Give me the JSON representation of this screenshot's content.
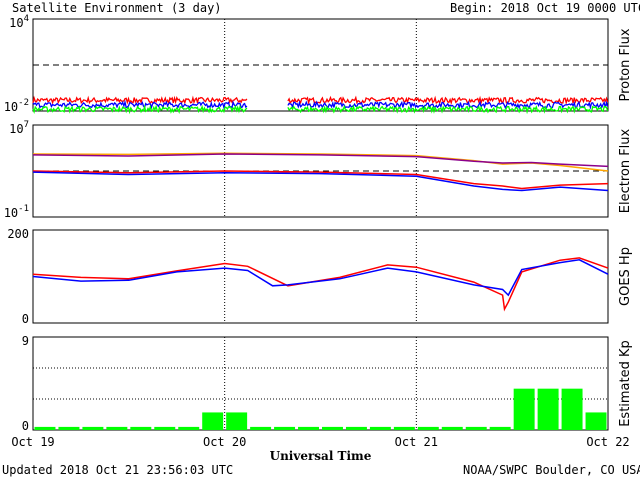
{
  "header": {
    "title": "Satellite Environment (3 day)",
    "begin": "Begin:  2018 Oct 19 0000 UTC"
  },
  "footer": {
    "updated": "Updated 2018 Oct 21 23:56:03 UTC",
    "credit": "NOAA/SWPC Boulder, CO USA"
  },
  "colors": {
    "red": "#ff0000",
    "blue": "#0000ff",
    "green": "#00ff00",
    "orange": "#ffa500",
    "purple": "#8b008b"
  },
  "chart_data": [
    {
      "type": "line",
      "ylabel": "Proton Flux",
      "yscale": "log",
      "ylim": [
        0.01,
        10000
      ],
      "ytick_labels": [
        "10^4",
        "10^-2"
      ],
      "threshold": 10,
      "x_units": "days since 2018 Oct 19 0000 UTC",
      "data_gap": [
        1.12,
        1.33
      ],
      "series": [
        {
          "color": "red",
          "typical": 0.05
        },
        {
          "color": "blue",
          "typical": 0.025
        },
        {
          "color": "green",
          "typical": 0.013
        }
      ]
    },
    {
      "type": "line",
      "ylabel": "Electron Flux",
      "yscale": "log",
      "ylim": [
        0.1,
        10000000
      ],
      "ytick_labels": [
        "10^7",
        "10^-1"
      ],
      "threshold": 1000,
      "series": [
        {
          "color": "orange",
          "x": [
            0,
            0.5,
            1,
            1.5,
            2,
            2.3,
            2.45,
            2.6,
            2.75,
            3
          ],
          "y": [
            30000,
            28000,
            35000,
            30000,
            22000,
            8000,
            4000,
            5000,
            3000,
            1000
          ]
        },
        {
          "color": "purple",
          "x": [
            0,
            0.5,
            1,
            1.5,
            2,
            2.3,
            2.45,
            2.6,
            2.75,
            3
          ],
          "y": [
            25000,
            20000,
            30000,
            25000,
            18000,
            7000,
            5000,
            5500,
            4000,
            2500
          ]
        },
        {
          "color": "red",
          "x": [
            0,
            0.5,
            1,
            1.5,
            2,
            2.3,
            2.45,
            2.55,
            2.75,
            3
          ],
          "y": [
            1000,
            700,
            1000,
            800,
            500,
            80,
            50,
            30,
            60,
            80
          ]
        },
        {
          "color": "blue",
          "x": [
            0,
            0.5,
            1,
            1.5,
            2,
            2.3,
            2.45,
            2.55,
            2.75,
            3
          ],
          "y": [
            800,
            500,
            700,
            600,
            350,
            50,
            25,
            20,
            40,
            20
          ]
        }
      ]
    },
    {
      "type": "line",
      "ylabel": "GOES Hp",
      "ylim": [
        0,
        200
      ],
      "ytick_labels": [
        "200",
        "0"
      ],
      "series": [
        {
          "color": "red",
          "x": [
            0,
            0.25,
            0.5,
            0.75,
            1.0,
            1.12,
            1.33,
            1.6,
            1.85,
            2.0,
            2.3,
            2.45,
            2.46,
            2.48,
            2.55,
            2.75,
            2.85,
            3
          ],
          "y": [
            105,
            98,
            95,
            112,
            128,
            122,
            80,
            98,
            125,
            120,
            88,
            60,
            30,
            45,
            110,
            135,
            140,
            118
          ]
        },
        {
          "color": "blue",
          "x": [
            0,
            0.25,
            0.5,
            0.75,
            1.0,
            1.12,
            1.25,
            1.33,
            1.6,
            1.85,
            2.0,
            2.3,
            2.45,
            2.48,
            2.55,
            2.75,
            2.85,
            3
          ],
          "y": [
            100,
            90,
            92,
            110,
            118,
            113,
            80,
            82,
            95,
            118,
            110,
            82,
            72,
            60,
            115,
            130,
            136,
            105
          ]
        }
      ]
    },
    {
      "type": "bar",
      "ylabel": "Estimated Kp",
      "ylim": [
        0,
        9
      ],
      "ytick_labels": [
        "9",
        "0"
      ],
      "bar_color": "green",
      "x_labels": [
        "Oct 19",
        "Oct 20",
        "Oct 21",
        "Oct 22"
      ],
      "xlabel": "Universal Time",
      "kp_values": [
        0.3,
        0.3,
        0.3,
        0.3,
        0.3,
        0.3,
        0.3,
        1.7,
        1.7,
        0.3,
        0.3,
        0.3,
        0.3,
        0.3,
        0.3,
        0.3,
        0.3,
        0.3,
        0.3,
        0.3,
        4,
        4,
        4,
        1.7
      ]
    }
  ]
}
